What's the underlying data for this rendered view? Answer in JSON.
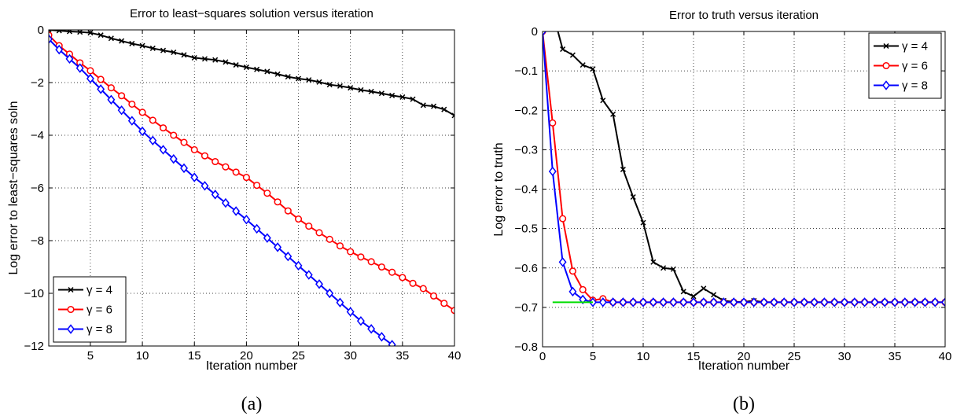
{
  "chart_data": [
    {
      "type": "line",
      "panel": "(a)",
      "title": "Error to least−squares solution versus iteration",
      "xlabel": "Iteration number",
      "ylabel": "Log error to least−squares soln",
      "xlim": [
        1,
        40
      ],
      "ylim": [
        -12,
        0
      ],
      "xticks": [
        5,
        10,
        15,
        20,
        25,
        30,
        35,
        40
      ],
      "yticks": [
        0,
        -2,
        -4,
        -6,
        -8,
        -10,
        -12
      ],
      "grid": true,
      "legend_position": "bottom-left",
      "series": [
        {
          "name": "γ = 4",
          "color": "#000000",
          "marker": "x",
          "x": [
            1,
            2,
            3,
            4,
            5,
            6,
            7,
            8,
            9,
            10,
            11,
            12,
            13,
            14,
            15,
            16,
            17,
            18,
            19,
            20,
            21,
            22,
            23,
            24,
            25,
            26,
            27,
            28,
            29,
            30,
            31,
            32,
            33,
            34,
            35,
            36,
            37,
            38,
            39,
            40
          ],
          "y": [
            0.0,
            -0.03,
            -0.06,
            -0.08,
            -0.11,
            -0.2,
            -0.32,
            -0.42,
            -0.52,
            -0.6,
            -0.7,
            -0.78,
            -0.85,
            -0.95,
            -1.06,
            -1.1,
            -1.14,
            -1.22,
            -1.33,
            -1.42,
            -1.5,
            -1.58,
            -1.68,
            -1.78,
            -1.85,
            -1.9,
            -1.98,
            -2.08,
            -2.13,
            -2.2,
            -2.28,
            -2.34,
            -2.41,
            -2.49,
            -2.55,
            -2.63,
            -2.86,
            -2.9,
            -3.02,
            -3.25
          ]
        },
        {
          "name": "γ = 6",
          "color": "#ff0000",
          "marker": "o",
          "x": [
            1,
            2,
            3,
            4,
            5,
            6,
            7,
            8,
            9,
            10,
            11,
            12,
            13,
            14,
            15,
            16,
            17,
            18,
            19,
            20,
            21,
            22,
            23,
            24,
            25,
            26,
            27,
            28,
            29,
            30,
            31,
            32,
            33,
            34,
            35,
            36,
            37,
            38,
            39,
            40
          ],
          "y": [
            -0.2,
            -0.6,
            -0.92,
            -1.25,
            -1.55,
            -1.88,
            -2.2,
            -2.5,
            -2.82,
            -3.13,
            -3.43,
            -3.72,
            -4.0,
            -4.27,
            -4.55,
            -4.78,
            -5.0,
            -5.2,
            -5.4,
            -5.6,
            -5.9,
            -6.2,
            -6.53,
            -6.87,
            -7.18,
            -7.45,
            -7.7,
            -7.95,
            -8.2,
            -8.42,
            -8.62,
            -8.8,
            -9.0,
            -9.2,
            -9.4,
            -9.62,
            -9.82,
            -10.1,
            -10.38,
            -10.65
          ]
        },
        {
          "name": "γ = 8",
          "color": "#0000ff",
          "marker": "d",
          "x": [
            1,
            2,
            3,
            4,
            5,
            6,
            7,
            8,
            9,
            10,
            11,
            12,
            13,
            14,
            15,
            16,
            17,
            18,
            19,
            20,
            21,
            22,
            23,
            24,
            25,
            26,
            27,
            28,
            29,
            30,
            31,
            32,
            33,
            34,
            35,
            36
          ],
          "y": [
            -0.35,
            -0.75,
            -1.1,
            -1.45,
            -1.85,
            -2.25,
            -2.65,
            -3.05,
            -3.45,
            -3.85,
            -4.2,
            -4.55,
            -4.9,
            -5.25,
            -5.6,
            -5.92,
            -6.25,
            -6.57,
            -6.88,
            -7.2,
            -7.55,
            -7.9,
            -8.25,
            -8.6,
            -8.95,
            -9.3,
            -9.65,
            -10.0,
            -10.35,
            -10.7,
            -11.05,
            -11.35,
            -11.65,
            -11.95,
            -12.25,
            -12.55
          ]
        }
      ]
    },
    {
      "type": "line",
      "panel": "(b)",
      "title": "Error to truth versus iteration",
      "xlabel": "Iteration number",
      "ylabel": "Log error to truth",
      "xlim": [
        0,
        40
      ],
      "ylim": [
        -0.8,
        0
      ],
      "xticks": [
        0,
        5,
        10,
        15,
        20,
        25,
        30,
        35,
        40
      ],
      "yticks": [
        0,
        -0.1,
        -0.2,
        -0.3,
        -0.4,
        -0.5,
        -0.6,
        -0.7,
        -0.8
      ],
      "ytick_labels": [
        "0",
        "−0.1",
        "−0.2",
        "−0.3",
        "−0.4",
        "−0.5",
        "−0.6",
        "−0.7",
        "−0.8"
      ],
      "grid": true,
      "legend_position": "top-right",
      "series": [
        {
          "name": "γ = 4",
          "color": "#000000",
          "marker": "x",
          "x": [
            0,
            1,
            2,
            3,
            4,
            5,
            6,
            7,
            8,
            9,
            10,
            11,
            12,
            13,
            14,
            15,
            16,
            17,
            18,
            19,
            20,
            21,
            22,
            23,
            24,
            25,
            26,
            27,
            28,
            29,
            30,
            31,
            32,
            33,
            34,
            35,
            36,
            37,
            38,
            39,
            40
          ],
          "y": [
            0,
            0.05,
            -0.045,
            -0.06,
            -0.085,
            -0.095,
            -0.175,
            -0.21,
            -0.35,
            -0.42,
            -0.485,
            -0.585,
            -0.6,
            -0.603,
            -0.66,
            -0.672,
            -0.652,
            -0.668,
            -0.683,
            -0.686,
            -0.686,
            -0.683,
            -0.687,
            -0.687,
            -0.687,
            -0.687,
            -0.687,
            -0.687,
            -0.687,
            -0.687,
            -0.687,
            -0.687,
            -0.687,
            -0.687,
            -0.687,
            -0.687,
            -0.687,
            -0.687,
            -0.687,
            -0.687,
            -0.687
          ]
        },
        {
          "name": "γ = 6",
          "color": "#ff0000",
          "marker": "o",
          "x": [
            0,
            1,
            2,
            3,
            4,
            5,
            6,
            7,
            8,
            9,
            10,
            11,
            12,
            13,
            14,
            15,
            16,
            17,
            18,
            19,
            20,
            21,
            22,
            23,
            24,
            25,
            26,
            27,
            28,
            29,
            30,
            31,
            32,
            33,
            34,
            35,
            36,
            37,
            38,
            39,
            40
          ],
          "y": [
            0,
            -0.232,
            -0.475,
            -0.608,
            -0.655,
            -0.682,
            -0.678,
            -0.687,
            -0.687,
            -0.687,
            -0.687,
            -0.687,
            -0.687,
            -0.687,
            -0.687,
            -0.687,
            -0.687,
            -0.687,
            -0.687,
            -0.687,
            -0.687,
            -0.687,
            -0.687,
            -0.687,
            -0.687,
            -0.687,
            -0.687,
            -0.687,
            -0.687,
            -0.687,
            -0.687,
            -0.687,
            -0.687,
            -0.687,
            -0.687,
            -0.687,
            -0.687,
            -0.687,
            -0.687,
            -0.687,
            -0.687
          ]
        },
        {
          "name": "γ = 8",
          "color": "#0000ff",
          "marker": "d",
          "x": [
            0,
            1,
            2,
            3,
            4,
            5,
            6,
            7,
            8,
            9,
            10,
            11,
            12,
            13,
            14,
            15,
            16,
            17,
            18,
            19,
            20,
            21,
            22,
            23,
            24,
            25,
            26,
            27,
            28,
            29,
            30,
            31,
            32,
            33,
            34,
            35,
            36,
            37,
            38,
            39,
            40
          ],
          "y": [
            0,
            -0.355,
            -0.585,
            -0.66,
            -0.68,
            -0.687,
            -0.687,
            -0.687,
            -0.687,
            -0.687,
            -0.687,
            -0.687,
            -0.687,
            -0.687,
            -0.687,
            -0.687,
            -0.687,
            -0.687,
            -0.687,
            -0.687,
            -0.687,
            -0.687,
            -0.687,
            -0.687,
            -0.687,
            -0.687,
            -0.687,
            -0.687,
            -0.687,
            -0.687,
            -0.687,
            -0.687,
            -0.687,
            -0.687,
            -0.687,
            -0.687,
            -0.687,
            -0.687,
            -0.687,
            -0.687,
            -0.687
          ]
        },
        {
          "color": "#00dd00",
          "marker": "none",
          "x": [
            1,
            5
          ],
          "y": [
            -0.687,
            -0.687
          ]
        }
      ]
    }
  ]
}
